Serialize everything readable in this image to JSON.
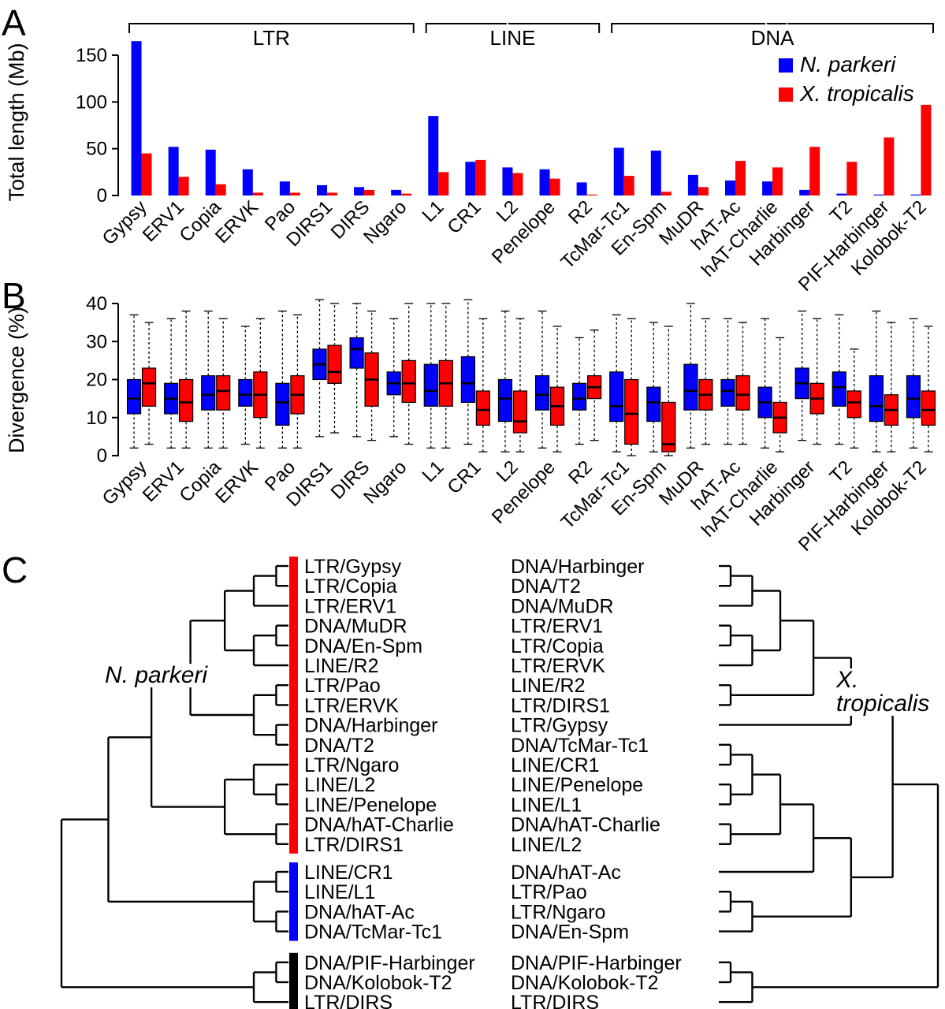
{
  "chart_data": [
    {
      "type": "bar",
      "panel": "A",
      "ylabel": "Total length (Mb)",
      "yticks": [
        0,
        50,
        100,
        150
      ],
      "ylim": [
        0,
        170
      ],
      "groups": [
        {
          "label": "LTR",
          "span": [
            0,
            7
          ]
        },
        {
          "label": "LINE",
          "span": [
            8,
            12
          ]
        },
        {
          "label": "DNA",
          "span": [
            13,
            21
          ]
        }
      ],
      "legend": [
        {
          "label": "N. parkeri",
          "color": "#0000FF"
        },
        {
          "label": "X. tropicalis",
          "color": "#FF0000"
        }
      ],
      "categories": [
        "Gypsy",
        "ERV1",
        "Copia",
        "ERVK",
        "Pao",
        "DIRS1",
        "DIRS",
        "Ngaro",
        "L1",
        "CR1",
        "L2",
        "Penelope",
        "R2",
        "TcMar-Tc1",
        "En-Spm",
        "MuDR",
        "hAT-Ac",
        "hAT-Charlie",
        "Harbinger",
        "T2",
        "PIF-Harbinger",
        "Kolobok-T2"
      ],
      "series": [
        {
          "name": "N. parkeri",
          "color": "#0000FF",
          "values": [
            165,
            52,
            49,
            28,
            15,
            11,
            9,
            6,
            85,
            36,
            30,
            28,
            14,
            51,
            48,
            22,
            16,
            15,
            6,
            2,
            1,
            1
          ]
        },
        {
          "name": "X. tropicalis",
          "color": "#FF0000",
          "values": [
            45,
            20,
            12,
            3,
            3,
            3,
            6,
            2,
            25,
            38,
            24,
            18,
            1,
            21,
            4,
            9,
            37,
            30,
            52,
            36,
            62,
            97
          ]
        }
      ]
    },
    {
      "type": "boxplot",
      "panel": "B",
      "ylabel": "Divergence (%)",
      "yticks": [
        0,
        10,
        20,
        30,
        40
      ],
      "ylim": [
        0,
        42
      ],
      "box_format": [
        "whisker_low",
        "q1",
        "median",
        "q3",
        "whisker_high"
      ],
      "categories": [
        "Gypsy",
        "ERV1",
        "Copia",
        "ERVK",
        "Pao",
        "DIRS1",
        "DIRS",
        "Ngaro",
        "L1",
        "CR1",
        "L2",
        "Penelope",
        "R2",
        "TcMar-Tc1",
        "En-Spm",
        "MuDR",
        "hAT-Ac",
        "hAT-Charlie",
        "Harbinger",
        "T2",
        "PIF-Harbinger",
        "Kolobok-T2"
      ],
      "series": [
        {
          "name": "N. parkeri",
          "color": "#0000FF",
          "boxes": [
            [
              2,
              11,
              15,
              20,
              37
            ],
            [
              2,
              11,
              15,
              19,
              36
            ],
            [
              2,
              12,
              16,
              21,
              38
            ],
            [
              3,
              13,
              16,
              20,
              34
            ],
            [
              2,
              8,
              14,
              19,
              38
            ],
            [
              5,
              20,
              24,
              28,
              41
            ],
            [
              5,
              23,
              28,
              31,
              40
            ],
            [
              5,
              16,
              19,
              22,
              36
            ],
            [
              2,
              13,
              17,
              24,
              40
            ],
            [
              3,
              14,
              19,
              26,
              41
            ],
            [
              1,
              9,
              15,
              20,
              38
            ],
            [
              2,
              12,
              16,
              21,
              38
            ],
            [
              3,
              12,
              15,
              19,
              31
            ],
            [
              1,
              9,
              13,
              22,
              37
            ],
            [
              1,
              9,
              14,
              18,
              35
            ],
            [
              2,
              12,
              17,
              24,
              40
            ],
            [
              3,
              13,
              17,
              20,
              36
            ],
            [
              2,
              10,
              14,
              18,
              36
            ],
            [
              4,
              15,
              19,
              23,
              38
            ],
            [
              3,
              13,
              18,
              22,
              37
            ],
            [
              1,
              9,
              13,
              21,
              38
            ],
            [
              2,
              10,
              15,
              21,
              36
            ]
          ]
        },
        {
          "name": "X. tropicalis",
          "color": "#FF0000",
          "boxes": [
            [
              3,
              13,
              19,
              23,
              35
            ],
            [
              2,
              9,
              14,
              20,
              38
            ],
            [
              2,
              12,
              17,
              21,
              36
            ],
            [
              2,
              10,
              16,
              22,
              36
            ],
            [
              2,
              11,
              16,
              21,
              37
            ],
            [
              6,
              19,
              22,
              29,
              40
            ],
            [
              4,
              13,
              20,
              27,
              38
            ],
            [
              3,
              14,
              19,
              25,
              40
            ],
            [
              2,
              13,
              19,
              25,
              40
            ],
            [
              1,
              8,
              12,
              17,
              36
            ],
            [
              1,
              6,
              9,
              17,
              36
            ],
            [
              1,
              8,
              13,
              18,
              34
            ],
            [
              4,
              15,
              18,
              21,
              33
            ],
            [
              0,
              3,
              11,
              20,
              36
            ],
            [
              0,
              1,
              3,
              14,
              34
            ],
            [
              3,
              12,
              16,
              20,
              36
            ],
            [
              3,
              12,
              16,
              21,
              35
            ],
            [
              1,
              6,
              10,
              14,
              31
            ],
            [
              3,
              11,
              15,
              19,
              36
            ],
            [
              2,
              10,
              14,
              17,
              28
            ],
            [
              1,
              8,
              12,
              16,
              35
            ],
            [
              1,
              8,
              12,
              17,
              34
            ]
          ]
        }
      ]
    },
    {
      "type": "dendrogram",
      "panel": "C",
      "left_title": "N. parkeri",
      "right_title": "X. tropicalis",
      "colors": {
        "red": "#FF0000",
        "blue": "#0000FF",
        "black": "#000000"
      },
      "left_leaves": [
        {
          "label": "LTR/Gypsy",
          "color": "red"
        },
        {
          "label": "LTR/Copia",
          "color": "red"
        },
        {
          "label": "LTR/ERV1",
          "color": "red"
        },
        {
          "label": "DNA/MuDR",
          "color": "red"
        },
        {
          "label": "DNA/En-Spm",
          "color": "red"
        },
        {
          "label": "LINE/R2",
          "color": "red"
        },
        {
          "label": "LTR/Pao",
          "color": "red"
        },
        {
          "label": "LTR/ERVK",
          "color": "red"
        },
        {
          "label": "DNA/Harbinger",
          "color": "red"
        },
        {
          "label": "DNA/T2",
          "color": "red"
        },
        {
          "label": "LTR/Ngaro",
          "color": "red"
        },
        {
          "label": "LINE/L2",
          "color": "red"
        },
        {
          "label": "LINE/Penelope",
          "color": "red"
        },
        {
          "label": "DNA/hAT-Charlie",
          "color": "red"
        },
        {
          "label": "LTR/DIRS1",
          "color": "red"
        },
        {
          "label": "LINE/CR1",
          "color": "blue"
        },
        {
          "label": "LINE/L1",
          "color": "blue"
        },
        {
          "label": "DNA/hAT-Ac",
          "color": "blue"
        },
        {
          "label": "DNA/TcMar-Tc1",
          "color": "blue"
        },
        {
          "label": "DNA/PIF-Harbinger",
          "color": "black"
        },
        {
          "label": "DNA/Kolobok-T2",
          "color": "black"
        },
        {
          "label": "LTR/DIRS",
          "color": "black"
        }
      ],
      "right_leaves": [
        {
          "label": "DNA/Harbinger",
          "color": "red"
        },
        {
          "label": "DNA/T2",
          "color": "red"
        },
        {
          "label": "DNA/MuDR",
          "color": "red"
        },
        {
          "label": "LTR/ERV1",
          "color": "red"
        },
        {
          "label": "LTR/Copia",
          "color": "red"
        },
        {
          "label": "LTR/ERVK",
          "color": "red"
        },
        {
          "label": "LINE/R2",
          "color": "red"
        },
        {
          "label": "LTR/DIRS1",
          "color": "red"
        },
        {
          "label": "LTR/Gypsy",
          "color": "red"
        },
        {
          "label": "DNA/TcMar-Tc1",
          "color": "blue"
        },
        {
          "label": "LINE/CR1",
          "color": "blue"
        },
        {
          "label": "LINE/Penelope",
          "color": "red"
        },
        {
          "label": "LINE/L1",
          "color": "blue"
        },
        {
          "label": "DNA/hAT-Charlie",
          "color": "red"
        },
        {
          "label": "LINE/L2",
          "color": "red"
        },
        {
          "label": "DNA/hAT-Ac",
          "color": "blue"
        },
        {
          "label": "LTR/Pao",
          "color": "red"
        },
        {
          "label": "LTR/Ngaro",
          "color": "red"
        },
        {
          "label": "DNA/En-Spm",
          "color": "red"
        },
        {
          "label": "DNA/PIF-Harbinger",
          "color": "black"
        },
        {
          "label": "DNA/Kolobok-T2",
          "color": "black"
        },
        {
          "label": "LTR/DIRS",
          "color": "black"
        }
      ],
      "left_tree": [
        [
          [
            [
              [
                [
                  [
                    0,
                    1
                  ],
                  2
                ],
                [
                  [
                    3,
                    4
                  ],
                  5
                ]
              ],
              [
                [
                  6,
                  7
                ],
                [
                  8,
                  9
                ]
              ]
            ],
            [
              [
                10,
                [
                  11,
                  12
                ]
              ],
              [
                13,
                14
              ]
            ]
          ],
          [
            [
              15,
              16
            ],
            [
              17,
              18
            ]
          ]
        ],
        [
          [
            19,
            20
          ],
          21
        ]
      ],
      "right_tree": [
        [
          [
            [
              [
                [
                  [
                    0,
                    1
                  ],
                  2
                ],
                [
                  [
                    3,
                    4
                  ],
                  5
                ]
              ],
              [
                6,
                7
              ]
            ],
            8
          ],
          [
            [
              [
                [
                  [
                    9,
                    10
                  ],
                  [
                    11,
                    12
                  ]
                ],
                [
                  13,
                  14
                ]
              ],
              15
            ],
            [
              [
                16,
                17
              ],
              18
            ]
          ]
        ],
        [
          [
            19,
            20
          ],
          21
        ]
      ]
    }
  ]
}
